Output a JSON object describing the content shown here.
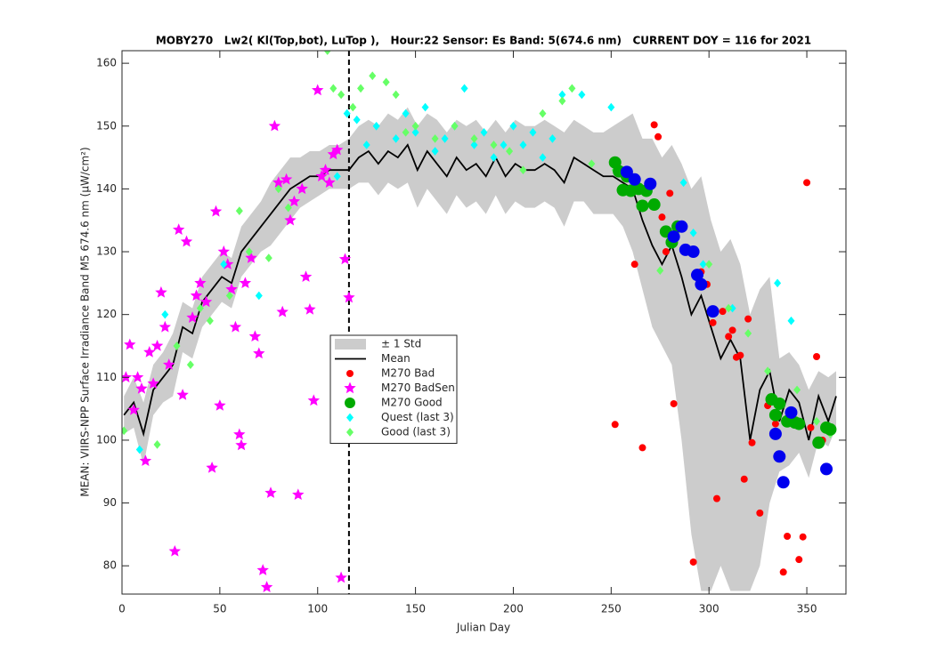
{
  "chart_data": {
    "type": "line",
    "title": "MOBY270   Lw2( Kl(Top,bot), LuTop ),   Hour:22 Sensor: Es Band: 5(674.6 nm)   CURRENT DOY = 116 for 2021",
    "xlabel": "Julian Day",
    "ylabel": "MEAN: VIIRS-NPP Surface Irradiance Band M5 674.6 nm (μW/cm²)",
    "xlim": [
      0,
      370
    ],
    "ylim": [
      75.5,
      162
    ],
    "xticks": [
      0,
      50,
      100,
      150,
      200,
      250,
      300,
      350
    ],
    "yticks": [
      80,
      90,
      100,
      110,
      120,
      130,
      140,
      150,
      160
    ],
    "vline": 116,
    "x": [
      1,
      6,
      11,
      16,
      21,
      26,
      31,
      36,
      41,
      46,
      51,
      56,
      61,
      66,
      71,
      76,
      81,
      86,
      91,
      96,
      101,
      106,
      111,
      116,
      121,
      126,
      131,
      136,
      141,
      146,
      151,
      156,
      161,
      166,
      171,
      176,
      181,
      186,
      191,
      196,
      201,
      206,
      211,
      216,
      221,
      226,
      231,
      236,
      241,
      246,
      251,
      256,
      261,
      266,
      271,
      276,
      281,
      286,
      291,
      296,
      301,
      306,
      311,
      316,
      321,
      326,
      331,
      336,
      341,
      346,
      351,
      356,
      361,
      365
    ],
    "band": {
      "name": "± 1 Std",
      "color": "#cccccc",
      "upper": [
        107,
        110,
        106,
        112,
        114,
        117,
        122,
        121,
        126,
        128,
        130,
        129,
        134,
        136,
        138,
        141,
        143,
        145,
        145,
        146,
        146,
        147,
        147,
        148,
        150,
        151,
        150,
        152,
        151,
        153,
        150,
        152,
        151,
        149,
        151,
        150,
        151,
        149,
        151,
        149,
        151,
        150,
        150,
        151,
        150,
        149,
        151,
        150,
        149,
        149,
        150,
        151,
        152,
        148,
        148,
        145,
        147,
        144,
        140,
        142,
        135,
        130,
        132,
        128,
        120,
        124,
        126,
        113,
        114,
        112,
        108,
        111,
        110,
        111
      ],
      "lower": [
        101,
        102,
        96,
        104,
        106,
        107,
        114,
        113,
        118,
        120,
        122,
        121,
        126,
        128,
        130,
        131,
        133,
        135,
        137,
        138,
        139,
        140,
        140,
        140,
        141,
        141,
        139,
        141,
        140,
        141,
        137,
        140,
        138,
        136,
        139,
        137,
        138,
        136,
        139,
        136,
        138,
        137,
        137,
        138,
        137,
        134,
        138,
        138,
        136,
        136,
        136,
        134,
        130,
        124,
        118,
        115,
        112,
        100,
        85,
        76,
        76,
        80,
        76,
        76,
        76,
        80,
        90,
        95,
        96,
        98,
        94,
        100,
        99,
        102
      ]
    },
    "mean": {
      "name": "Mean",
      "color": "#000000",
      "values": [
        104,
        106,
        101,
        108,
        110,
        112,
        118,
        117,
        122,
        124,
        126,
        125,
        130,
        132,
        134,
        136,
        138,
        140,
        141,
        142,
        142,
        143,
        143,
        143,
        145,
        146,
        144,
        146,
        145,
        147,
        143,
        146,
        144,
        142,
        145,
        143,
        144,
        142,
        145,
        142,
        144,
        143,
        143,
        144,
        143,
        141,
        145,
        144,
        143,
        142,
        142,
        141,
        140,
        135,
        131,
        128,
        131,
        126,
        120,
        123,
        118,
        113,
        116,
        113,
        100,
        108,
        111,
        103,
        108,
        106,
        100,
        107,
        103,
        107
      ]
    },
    "scatter": [
      {
        "name": "M270 Bad",
        "color": "#ff0000",
        "marker": "circle",
        "size": 4,
        "x": [
          252,
          266,
          262,
          272,
          274,
          276,
          278,
          280,
          282,
          292,
          296,
          299,
          302,
          304,
          307,
          310,
          312,
          314,
          316,
          318,
          320,
          322,
          326,
          330,
          332,
          334,
          338,
          340,
          343,
          346,
          348,
          350,
          352,
          355,
          358
        ],
        "y": [
          102.5,
          98.8,
          128,
          150.2,
          148.3,
          135.5,
          130,
          139.3,
          105.8,
          80.6,
          126.8,
          124.8,
          118.7,
          90.7,
          120.5,
          116.5,
          117.5,
          113.2,
          113.5,
          93.8,
          119.3,
          99.6,
          88.4,
          105.5,
          106.7,
          102.6,
          79,
          84.7,
          104.2,
          81,
          84.6,
          141,
          102,
          113.3,
          100
        ]
      },
      {
        "name": "M270 BadSen",
        "color": "#ff00ff",
        "marker": "star",
        "size": 6,
        "x": [
          2,
          4,
          6,
          8,
          10,
          12,
          14,
          16,
          18,
          20,
          22,
          24,
          27,
          29,
          31,
          33,
          36,
          38,
          40,
          43,
          46,
          48,
          50,
          52,
          54,
          56,
          58,
          60,
          61,
          63,
          66,
          68,
          70,
          72,
          74,
          76,
          78,
          80,
          82,
          84,
          86,
          88,
          90,
          92,
          94,
          96,
          98,
          100,
          102,
          104,
          106,
          108,
          110,
          112,
          114,
          116
        ],
        "y": [
          110,
          115.2,
          104.8,
          110,
          108.2,
          96.7,
          114,
          109,
          115,
          123.5,
          118,
          112,
          82.3,
          133.5,
          107.2,
          131.6,
          119.5,
          123,
          125,
          122,
          95.6,
          136.4,
          105.5,
          130,
          128,
          124,
          118,
          100.9,
          99.2,
          125,
          129,
          116.5,
          113.8,
          79.3,
          76.6,
          91.6,
          150,
          141,
          120.4,
          141.5,
          135,
          138,
          91.3,
          140,
          126,
          120.8,
          106.3,
          155.7,
          142,
          143,
          141,
          145.5,
          146.2,
          78.1,
          128.8,
          122.7
        ]
      },
      {
        "name": "Quest (last 3)",
        "color": "#00ffff",
        "marker": "diamond",
        "size": 3.5,
        "x": [
          9,
          22,
          52,
          70,
          110,
          115,
          120,
          125,
          130,
          140,
          145,
          150,
          155,
          160,
          165,
          170,
          175,
          180,
          185,
          190,
          195,
          200,
          205,
          210,
          215,
          220,
          225,
          235,
          250,
          287,
          292,
          297,
          312,
          335,
          342
        ],
        "y": [
          98.5,
          120,
          128,
          123,
          142,
          152,
          151,
          147,
          150,
          148,
          152,
          149,
          153,
          146,
          148,
          150,
          156,
          147,
          149,
          145,
          147,
          150,
          147,
          149,
          145,
          148,
          155,
          155,
          153,
          141,
          133,
          128,
          121,
          125,
          119
        ]
      },
      {
        "name": "Good (last 3)",
        "color": "#66ff66",
        "marker": "diamond",
        "size": 3.5,
        "x": [
          1,
          18,
          28,
          35,
          40,
          45,
          55,
          60,
          65,
          75,
          80,
          85,
          105,
          108,
          112,
          118,
          122,
          128,
          135,
          140,
          145,
          150,
          160,
          170,
          180,
          190,
          198,
          205,
          215,
          225,
          230,
          240,
          252,
          275,
          300,
          310,
          320,
          330,
          345,
          355,
          362
        ],
        "y": [
          101.5,
          99.3,
          115,
          112,
          121,
          119,
          123,
          136.5,
          130,
          129,
          140,
          137,
          162,
          156,
          155,
          153,
          156,
          158,
          157,
          155,
          149,
          150,
          148,
          150,
          148,
          147,
          146,
          143,
          152,
          154,
          156,
          144,
          143,
          127,
          128,
          121,
          117,
          111,
          108,
          103,
          101
        ]
      },
      {
        "name": "M270 Good",
        "color": "#00aa00",
        "marker": "circle",
        "size": 7,
        "x": [
          252,
          254,
          256,
          258,
          260,
          264,
          266,
          268,
          272,
          278,
          281,
          284,
          332,
          334,
          336,
          340,
          344,
          346,
          356,
          360,
          362
        ],
        "y": [
          144.2,
          142.8,
          139.8,
          142,
          139.7,
          140,
          137.3,
          139.7,
          137.5,
          133.2,
          131.5,
          134,
          106.5,
          104,
          105.8,
          103,
          102.8,
          102.6,
          99.6,
          102,
          101.7
        ]
      },
      {
        "color": "#0000ee",
        "marker": "circle",
        "size": 7,
        "x": [
          258,
          262,
          270,
          282,
          286,
          288,
          292,
          294,
          296,
          302,
          334,
          336,
          338,
          342,
          360
        ],
        "y": [
          142.7,
          141.5,
          140.8,
          132.4,
          134,
          130.3,
          130,
          126.3,
          124.8,
          120.5,
          101,
          97.4,
          93.3,
          104.4,
          95.4
        ]
      }
    ]
  }
}
